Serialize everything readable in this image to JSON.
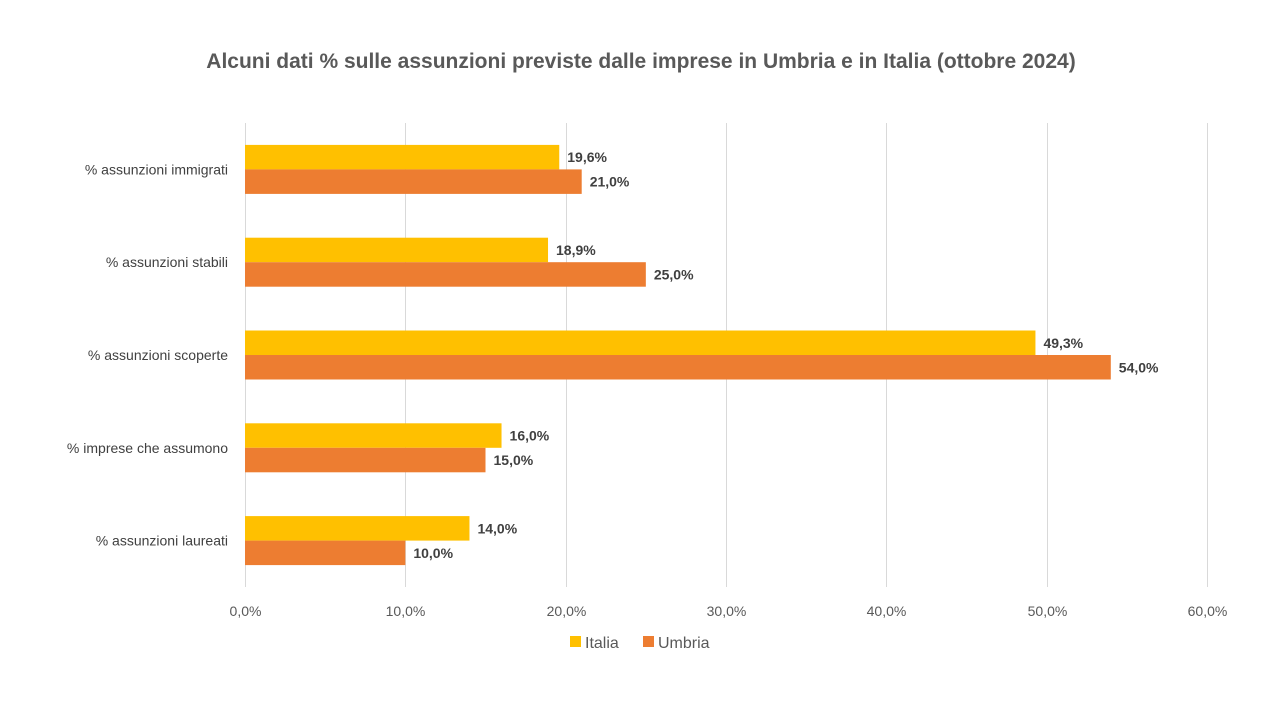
{
  "chart_data": {
    "type": "bar",
    "orientation": "horizontal",
    "title": "Alcuni dati % sulle assunzioni previste dalle imprese in Umbria e in Italia (ottobre 2024)",
    "xlabel": "",
    "ylabel": "",
    "categories": [
      "% assunzioni immigrati",
      "% assunzioni stabili",
      "% assunzioni scoperte",
      "% imprese che assumono",
      "% assunzioni laureati"
    ],
    "series": [
      {
        "name": "Italia",
        "color": "#FFC000",
        "values": [
          19.6,
          18.9,
          49.3,
          16.0,
          14.0
        ],
        "labels": [
          "19,6%",
          "18,9%",
          "49,3%",
          "16,0%",
          "14,0%"
        ]
      },
      {
        "name": "Umbria",
        "color": "#ED7D31",
        "values": [
          21.0,
          25.0,
          54.0,
          15.0,
          10.0
        ],
        "labels": [
          "21,0%",
          "25,0%",
          "54,0%",
          "15,0%",
          "10,0%"
        ]
      }
    ],
    "xlim": [
      0,
      60
    ],
    "x_ticks": [
      0,
      10,
      20,
      30,
      40,
      50,
      60
    ],
    "x_tick_labels": [
      "0,0%",
      "10,0%",
      "20,0%",
      "30,0%",
      "40,0%",
      "50,0%",
      "60,0%"
    ],
    "grid": true,
    "legend_position": "bottom"
  }
}
